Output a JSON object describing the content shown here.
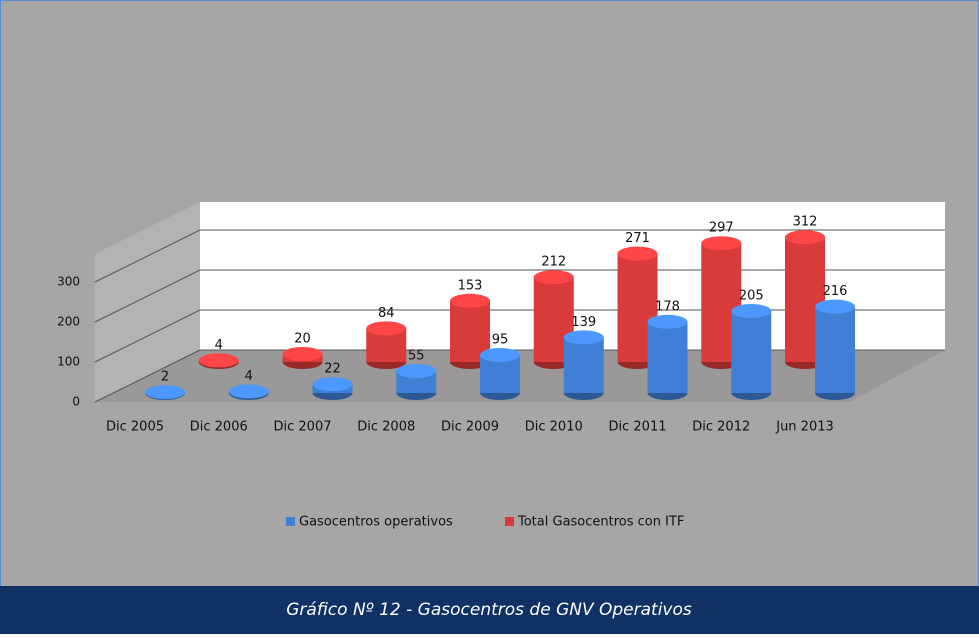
{
  "chart_data": {
    "type": "bar3d",
    "caption": "Gráfico Nº 12 -  Gasocentros de GNV Operativos",
    "categories": [
      "Dic 2005",
      "Dic 2006",
      "Dic 2007",
      "Dic 2008",
      "Dic 2009",
      "Dic 2010",
      "Dic 2011",
      "Dic 2012",
      "Jun 2013"
    ],
    "series": [
      {
        "name": "Gasocentros operativos",
        "color": "#3f7fd6",
        "values": [
          2,
          4,
          22,
          55,
          95,
          139,
          178,
          205,
          216
        ]
      },
      {
        "name": "Total Gasocentros con ITF",
        "color": "#d93a3a",
        "values": [
          null,
          4,
          20,
          84,
          153,
          212,
          271,
          297,
          312
        ]
      }
    ],
    "ylim": [
      0,
      350
    ],
    "yticks": [
      0,
      100,
      200,
      300
    ],
    "grid": true
  }
}
